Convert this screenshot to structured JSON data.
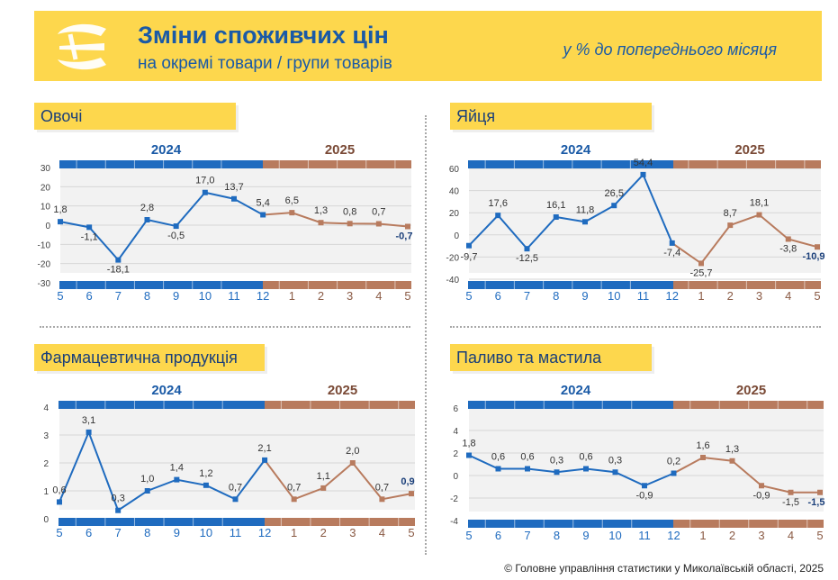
{
  "header": {
    "title": "Зміни споживчих цін",
    "subtitle": "на окремі товари / групи товарів",
    "units": "у % до попереднього місяця"
  },
  "footer": {
    "copyright": "© Головне управління статистики у Миколаївській області, 2025"
  },
  "colors": {
    "accent": "#fdd74d",
    "y2024": "#1f6bbf",
    "y2025": "#b87b5e",
    "title_text": "#1a5aa6"
  },
  "year_labels": [
    "2024",
    "2025"
  ],
  "chart_data": [
    {
      "type": "line",
      "title": "Овочі",
      "categories": [
        "5",
        "6",
        "7",
        "8",
        "9",
        "10",
        "11",
        "12",
        "1",
        "2",
        "3",
        "4",
        "5"
      ],
      "values": [
        1.8,
        -1.1,
        -18.1,
        2.8,
        -0.5,
        17.0,
        13.7,
        5.4,
        6.5,
        1.3,
        0.8,
        0.7,
        -0.7
      ],
      "labels": [
        "1,8",
        "-1,1",
        "-18,1",
        "2,8",
        "-0,5",
        "17,0",
        "13,7",
        "5,4",
        "6,5",
        "1,3",
        "0,8",
        "0,7",
        "-0,7"
      ],
      "series": [
        {
          "name": "2024",
          "from": 0,
          "to": 7
        },
        {
          "name": "2025",
          "from": 7,
          "to": 12
        }
      ],
      "ylim": [
        -30,
        30
      ],
      "yticks": [
        "30",
        "20",
        "10",
        "0",
        "-10",
        "-20",
        "-30"
      ],
      "ytick_values": [
        30,
        20,
        10,
        0,
        -10,
        -20,
        -30
      ]
    },
    {
      "type": "line",
      "title": "Яйця",
      "categories": [
        "5",
        "6",
        "7",
        "8",
        "9",
        "10",
        "11",
        "12",
        "1",
        "2",
        "3",
        "4",
        "5"
      ],
      "values": [
        -9.7,
        17.6,
        -12.5,
        16.1,
        11.8,
        26.5,
        54.4,
        -7.4,
        -25.7,
        8.7,
        18.1,
        -3.8,
        -10.9
      ],
      "labels": [
        "-9,7",
        "17,6",
        "-12,5",
        "16,1",
        "11,8",
        "26,5",
        "54,4",
        "-7,4",
        "-25,7",
        "8,7",
        "18,1",
        "-3,8",
        "-10,9"
      ],
      "series": [
        {
          "name": "2024",
          "from": 0,
          "to": 7
        },
        {
          "name": "2025",
          "from": 7,
          "to": 12
        }
      ],
      "ylim": [
        -40,
        60
      ],
      "yticks": [
        "60",
        "40",
        "20",
        "0",
        "-20",
        "-40"
      ],
      "ytick_values": [
        60,
        40,
        20,
        0,
        -20,
        -40
      ]
    },
    {
      "type": "line",
      "title": "Фармацевтична продукція",
      "categories": [
        "5",
        "6",
        "7",
        "8",
        "9",
        "10",
        "11",
        "12",
        "1",
        "2",
        "3",
        "4",
        "5"
      ],
      "values": [
        0.6,
        3.1,
        0.3,
        1.0,
        1.4,
        1.2,
        0.7,
        2.1,
        0.7,
        1.1,
        2.0,
        0.7,
        0.9
      ],
      "labels": [
        "0,6",
        "3,1",
        "0,3",
        "1,0",
        "1,4",
        "1,2",
        "0,7",
        "2,1",
        "0,7",
        "1,1",
        "2,0",
        "0,7",
        "0,9"
      ],
      "series": [
        {
          "name": "2024",
          "from": 0,
          "to": 7
        },
        {
          "name": "2025",
          "from": 7,
          "to": 12
        }
      ],
      "ylim": [
        0,
        4
      ],
      "yticks": [
        "4",
        "3",
        "2",
        "1",
        "0"
      ],
      "ytick_values": [
        4,
        3,
        2,
        1,
        0
      ]
    },
    {
      "type": "line",
      "title": "Паливо та мастила",
      "categories": [
        "5",
        "6",
        "7",
        "8",
        "9",
        "10",
        "11",
        "12",
        "1",
        "2",
        "3",
        "4",
        "5"
      ],
      "values": [
        1.8,
        0.6,
        0.6,
        0.3,
        0.6,
        0.3,
        -0.9,
        0.2,
        1.6,
        1.3,
        -0.9,
        -1.5,
        -1.5
      ],
      "labels": [
        "1,8",
        "0,6",
        "0,6",
        "0,3",
        "0,6",
        "0,3",
        "-0,9",
        "0,2",
        "1,6",
        "1,3",
        "-0,9",
        "-1,5",
        "-1,5"
      ],
      "series": [
        {
          "name": "2024",
          "from": 0,
          "to": 7
        },
        {
          "name": "2025",
          "from": 7,
          "to": 12
        }
      ],
      "ylim": [
        -4,
        6
      ],
      "yticks": [
        "6",
        "4",
        "2",
        "0",
        "-2",
        "-4"
      ],
      "ytick_values": [
        6,
        4,
        2,
        0,
        -2,
        -4
      ]
    }
  ]
}
